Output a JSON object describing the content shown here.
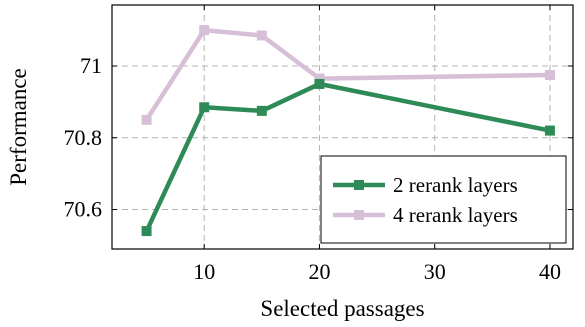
{
  "chart_data": {
    "type": "line",
    "xlabel": "Selected passages",
    "ylabel": "Performance",
    "xlim": [
      2,
      42
    ],
    "ylim": [
      70.49,
      71.17
    ],
    "x_ticks": [
      10,
      20,
      30,
      40
    ],
    "x_tick_labels": [
      "10",
      "20",
      "30",
      "40"
    ],
    "y_ticks": [
      70.6,
      70.8,
      71.0
    ],
    "y_tick_labels": [
      "70.6",
      "70.8",
      "71"
    ],
    "grid": true,
    "grid_style": "dashed",
    "legend_position": "bottom-right",
    "series": [
      {
        "name": "2 rerank layers",
        "color": "#2e8b57",
        "marker": "square",
        "x": [
          5,
          10,
          15,
          20,
          40
        ],
        "y": [
          70.54,
          70.885,
          70.875,
          70.95,
          70.82
        ]
      },
      {
        "name": "4 rerank layers",
        "color": "#d8bfd8",
        "marker": "square",
        "x": [
          5,
          10,
          15,
          20,
          40
        ],
        "y": [
          70.85,
          71.1,
          71.085,
          70.965,
          70.975
        ]
      }
    ]
  }
}
